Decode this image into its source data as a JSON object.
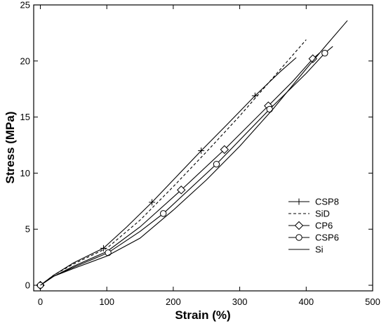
{
  "chart_data": {
    "type": "line",
    "title": "",
    "xlabel": "Strain (%)",
    "ylabel": "Stress (MPa)",
    "xlim": [
      -10,
      500
    ],
    "ylim": [
      -0.5,
      25
    ],
    "xticks": [
      0,
      100,
      200,
      300,
      400,
      500
    ],
    "yticks": [
      0,
      5,
      10,
      15,
      20,
      25
    ],
    "xtick_labels": [
      "0",
      "100",
      "200",
      "300",
      "400",
      "500"
    ],
    "ytick_labels": [
      "0",
      "5",
      "10",
      "15",
      "20",
      "25"
    ],
    "grid": false,
    "legend_position": "bottom-right",
    "series": [
      {
        "name": "CSP8",
        "line_style": "solid",
        "marker": "plus",
        "x": [
          0,
          20,
          50,
          95,
          130,
          168,
          205,
          242,
          282,
          323,
          360,
          385
        ],
        "y": [
          0,
          0.9,
          2.0,
          3.3,
          5.2,
          7.4,
          9.7,
          12.0,
          14.4,
          16.9,
          19.0,
          20.3
        ],
        "marker_x": [
          0,
          95,
          168,
          242,
          323
        ],
        "marker_y": [
          0,
          3.3,
          7.4,
          12.0,
          16.9
        ]
      },
      {
        "name": "SiD",
        "line_style": "dashed",
        "marker": "none",
        "x": [
          0,
          20,
          50,
          100,
          150,
          200,
          250,
          300,
          350,
          400
        ],
        "y": [
          0,
          0.9,
          1.9,
          3.3,
          5.8,
          8.8,
          11.9,
          15.1,
          18.5,
          21.9
        ]
      },
      {
        "name": "CP6",
        "line_style": "solid",
        "marker": "diamond",
        "x": [
          0,
          20,
          50,
          100,
          150,
          212,
          277,
          343,
          380,
          410,
          420
        ],
        "y": [
          0,
          0.8,
          1.7,
          3.0,
          5.2,
          8.5,
          12.1,
          16.0,
          18.2,
          20.2,
          20.7
        ],
        "marker_x": [
          0,
          212,
          277,
          343,
          410
        ],
        "marker_y": [
          0,
          8.5,
          12.1,
          16.0,
          20.2
        ]
      },
      {
        "name": "CSP6",
        "line_style": "solid",
        "marker": "circle",
        "x": [
          0,
          20,
          50,
          102,
          150,
          185,
          265,
          345,
          400,
          428,
          440
        ],
        "y": [
          0,
          0.8,
          1.6,
          2.9,
          4.8,
          6.4,
          10.8,
          15.7,
          18.9,
          20.7,
          21.3
        ],
        "marker_x": [
          0,
          102,
          185,
          265,
          345,
          428
        ],
        "marker_y": [
          0,
          2.9,
          6.4,
          10.8,
          15.7,
          20.7
        ]
      },
      {
        "name": "Si",
        "line_style": "solid",
        "marker": "none",
        "x": [
          0,
          20,
          50,
          100,
          150,
          200,
          250,
          300,
          350,
          400,
          430,
          462
        ],
        "y": [
          0,
          0.8,
          1.5,
          2.6,
          4.2,
          6.7,
          9.4,
          12.4,
          15.7,
          19.3,
          21.4,
          23.6
        ]
      }
    ]
  }
}
